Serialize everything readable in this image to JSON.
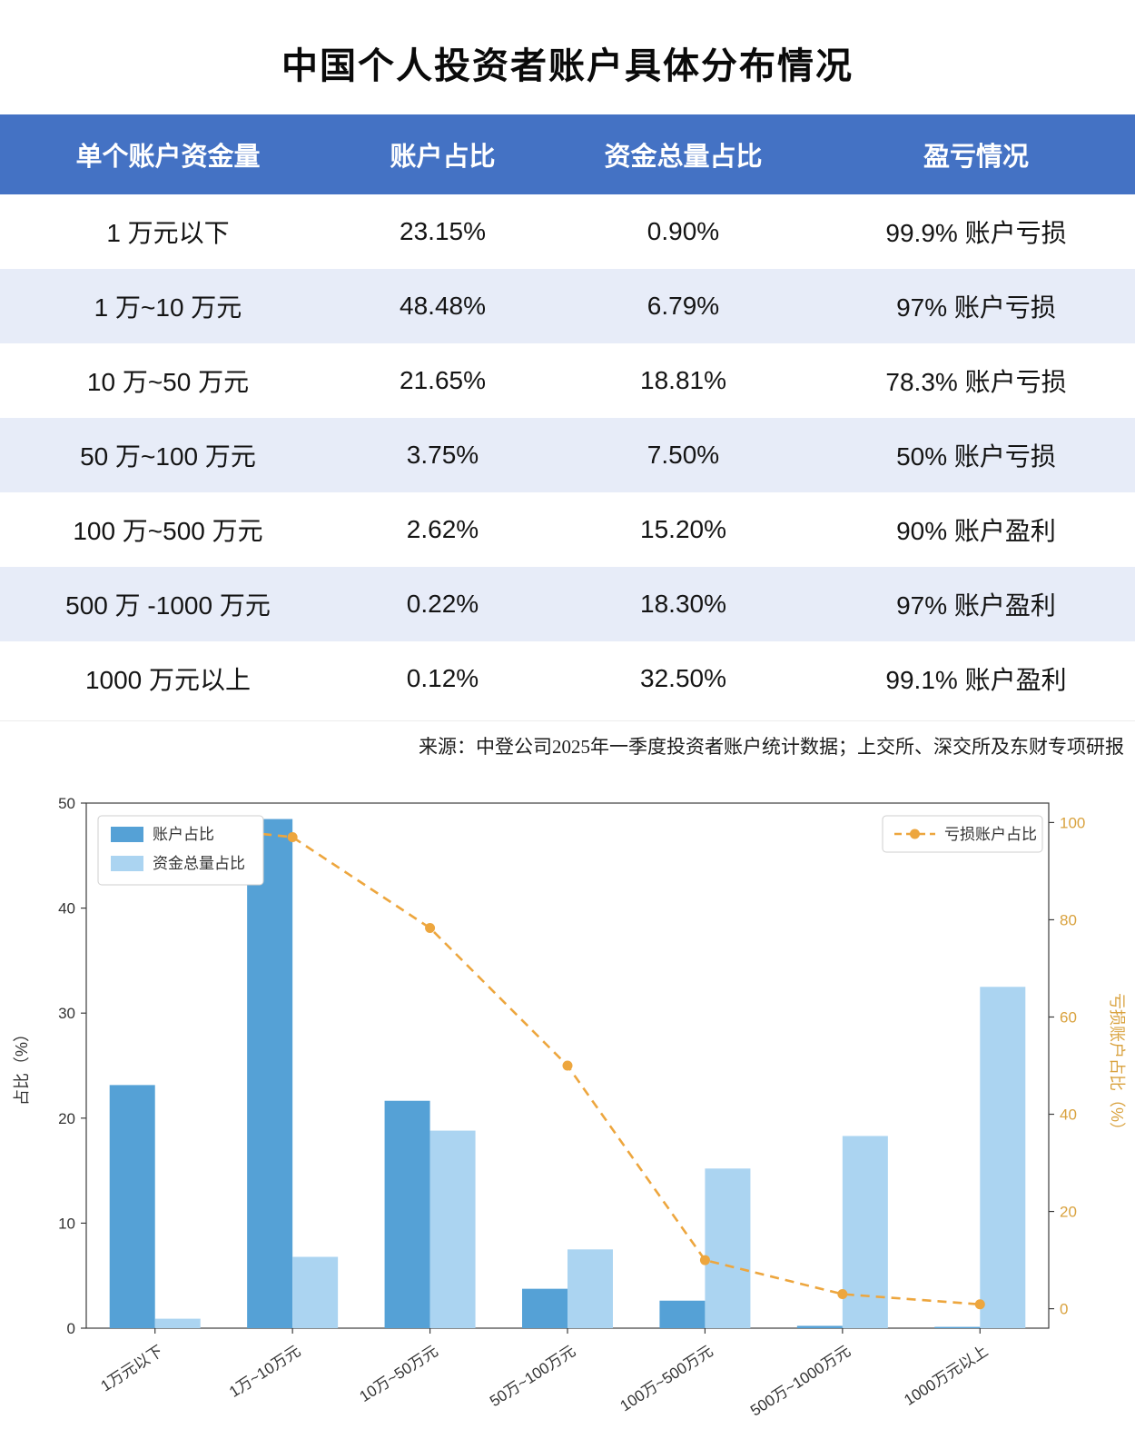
{
  "page": {
    "title": "中国个人投资者账户具体分布情况",
    "source": "来源：中登公司2025年一季度投资者账户统计数据；上交所、深交所及东财专项研报"
  },
  "table": {
    "headers": [
      "单个账户资金量",
      "账户占比",
      "资金总量占比",
      "盈亏情况"
    ],
    "rows": [
      [
        "1 万元以下",
        "23.15%",
        "0.90%",
        "99.9% 账户亏损"
      ],
      [
        "1 万~10 万元",
        "48.48%",
        "6.79%",
        "97% 账户亏损"
      ],
      [
        "10 万~50 万元",
        "21.65%",
        "18.81%",
        "78.3% 账户亏损"
      ],
      [
        "50 万~100 万元",
        "3.75%",
        "7.50%",
        "50% 账户亏损"
      ],
      [
        "100 万~500 万元",
        "2.62%",
        "15.20%",
        "90% 账户盈利"
      ],
      [
        "500 万 -1000 万元",
        "0.22%",
        "18.30%",
        "97% 账户盈利"
      ],
      [
        "1000 万元以上",
        "0.12%",
        "32.50%",
        "99.1% 账户盈利"
      ]
    ]
  },
  "chart_data": {
    "type": "bar+line",
    "categories": [
      "1万元以下",
      "1万~10万元",
      "10万~50万元",
      "50万~100万元",
      "100万~500万元",
      "500万~1000万元",
      "1000万元以上"
    ],
    "series": [
      {
        "name": "账户占比",
        "type": "bar",
        "axis": "left",
        "color": "#55a1d6",
        "values": [
          23.15,
          48.48,
          21.65,
          3.75,
          2.62,
          0.22,
          0.12
        ]
      },
      {
        "name": "资金总量占比",
        "type": "bar",
        "axis": "left",
        "color": "#abd4f1",
        "values": [
          0.9,
          6.79,
          18.81,
          7.5,
          15.2,
          18.3,
          32.5
        ]
      },
      {
        "name": "亏损账户占比",
        "type": "line",
        "axis": "right",
        "color": "#eda63e",
        "style": "dashed",
        "marker": "circle",
        "values": [
          99.9,
          97,
          78.3,
          50,
          10,
          3,
          0.9
        ]
      }
    ],
    "left_axis": {
      "label": "占比（%）",
      "min": 0,
      "max": 50,
      "ticks": [
        0,
        10,
        20,
        30,
        40,
        50
      ]
    },
    "right_axis": {
      "label": "亏损账户占比（%）",
      "min": 0,
      "max": 100,
      "ticks": [
        0,
        20,
        40,
        60,
        80,
        100
      ],
      "color": "#d9a23e"
    },
    "legend": {
      "bars": [
        "账户占比",
        "资金总量占比"
      ],
      "line": "亏损账户占比",
      "position": "top-left / top-right"
    },
    "grid": false
  },
  "colors": {
    "header_bg": "#4472c4",
    "row_alt_bg": "#e7ecf8",
    "bar_primary": "#55a1d6",
    "bar_secondary": "#abd4f1",
    "line_orange": "#eda63e"
  }
}
